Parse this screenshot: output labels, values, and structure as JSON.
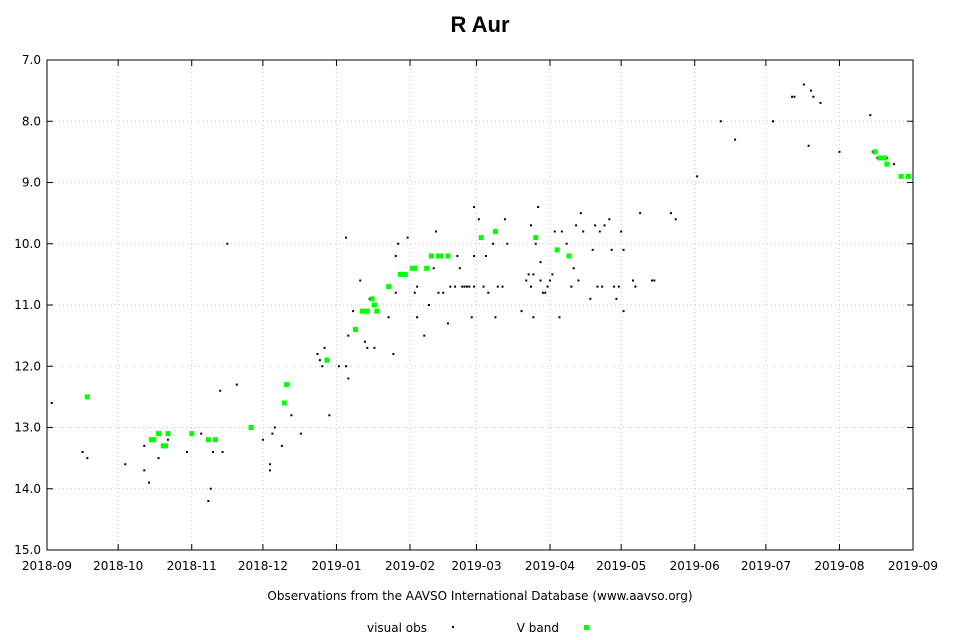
{
  "chart_data": {
    "type": "scatter",
    "title": "R Aur",
    "credit": "Observations from the AAVSO International Database (www.aavso.org)",
    "x_ticks": [
      "2018-09",
      "2018-10",
      "2018-11",
      "2018-12",
      "2019-01",
      "2019-02",
      "2019-03",
      "2019-04",
      "2019-05",
      "2019-06",
      "2019-07",
      "2019-08",
      "2019-09"
    ],
    "y_ticks": [
      "7.0",
      "8.0",
      "9.0",
      "10.0",
      "11.0",
      "12.0",
      "13.0",
      "14.0",
      "15.0"
    ],
    "xlim": [
      "2018-09-01",
      "2019-09-01"
    ],
    "ylim": [
      15.0,
      7.0
    ],
    "y_inverted": true,
    "grid": true,
    "legend_position": "bottom-center",
    "series": [
      {
        "name": "visual obs",
        "color": "#000000",
        "marker": "small-dot",
        "points": [
          [
            "2018-09-03",
            12.6
          ],
          [
            "2018-09-16",
            13.4
          ],
          [
            "2018-09-18",
            13.5
          ],
          [
            "2018-10-04",
            13.6
          ],
          [
            "2018-10-12",
            13.3
          ],
          [
            "2018-10-12",
            13.7
          ],
          [
            "2018-10-14",
            13.9
          ],
          [
            "2018-10-18",
            13.5
          ],
          [
            "2018-10-20",
            13.3
          ],
          [
            "2018-10-22",
            13.2
          ],
          [
            "2018-10-30",
            13.4
          ],
          [
            "2018-11-05",
            13.1
          ],
          [
            "2018-11-08",
            14.2
          ],
          [
            "2018-11-09",
            14.0
          ],
          [
            "2018-11-10",
            13.4
          ],
          [
            "2018-11-13",
            12.4
          ],
          [
            "2018-11-14",
            13.4
          ],
          [
            "2018-11-16",
            10.0
          ],
          [
            "2018-11-20",
            12.3
          ],
          [
            "2018-12-01",
            13.2
          ],
          [
            "2018-12-04",
            13.6
          ],
          [
            "2018-12-04",
            13.7
          ],
          [
            "2018-12-05",
            13.1
          ],
          [
            "2018-12-06",
            13.0
          ],
          [
            "2018-12-09",
            13.3
          ],
          [
            "2018-12-11",
            12.3
          ],
          [
            "2018-12-13",
            12.8
          ],
          [
            "2018-12-17",
            13.1
          ],
          [
            "2018-12-24",
            11.8
          ],
          [
            "2018-12-25",
            11.9
          ],
          [
            "2018-12-26",
            12.0
          ],
          [
            "2018-12-27",
            11.7
          ],
          [
            "2018-12-29",
            12.8
          ],
          [
            "2019-01-02",
            12.0
          ],
          [
            "2019-01-05",
            12.0
          ],
          [
            "2019-01-05",
            9.9
          ],
          [
            "2019-01-06",
            12.2
          ],
          [
            "2019-01-06",
            11.5
          ],
          [
            "2019-01-08",
            11.1
          ],
          [
            "2019-01-11",
            10.6
          ],
          [
            "2019-01-13",
            11.6
          ],
          [
            "2019-01-14",
            11.7
          ],
          [
            "2019-01-15",
            10.9
          ],
          [
            "2019-01-17",
            11.7
          ],
          [
            "2019-01-23",
            11.2
          ],
          [
            "2019-01-25",
            11.8
          ],
          [
            "2019-01-26",
            10.8
          ],
          [
            "2019-01-26",
            10.2
          ],
          [
            "2019-01-27",
            10.0
          ],
          [
            "2019-01-31",
            9.9
          ],
          [
            "2019-02-03",
            10.8
          ],
          [
            "2019-02-04",
            10.7
          ],
          [
            "2019-02-04",
            11.2
          ],
          [
            "2019-02-07",
            11.5
          ],
          [
            "2019-02-09",
            11.0
          ],
          [
            "2019-02-11",
            10.4
          ],
          [
            "2019-02-12",
            9.8
          ],
          [
            "2019-02-13",
            10.8
          ],
          [
            "2019-02-15",
            10.8
          ],
          [
            "2019-02-17",
            11.3
          ],
          [
            "2019-02-18",
            10.7
          ],
          [
            "2019-02-20",
            10.7
          ],
          [
            "2019-02-21",
            10.2
          ],
          [
            "2019-02-22",
            10.4
          ],
          [
            "2019-02-23",
            10.7
          ],
          [
            "2019-02-24",
            10.7
          ],
          [
            "2019-02-25",
            10.7
          ],
          [
            "2019-02-26",
            10.7
          ],
          [
            "2019-02-27",
            11.2
          ],
          [
            "2019-02-28",
            9.4
          ],
          [
            "2019-02-28",
            10.7
          ],
          [
            "2019-02-28",
            10.2
          ],
          [
            "2019-03-02",
            9.6
          ],
          [
            "2019-03-04",
            10.7
          ],
          [
            "2019-03-05",
            10.2
          ],
          [
            "2019-03-06",
            10.8
          ],
          [
            "2019-03-08",
            10.0
          ],
          [
            "2019-03-09",
            11.2
          ],
          [
            "2019-03-10",
            10.7
          ],
          [
            "2019-03-12",
            10.7
          ],
          [
            "2019-03-13",
            9.6
          ],
          [
            "2019-03-14",
            10.0
          ],
          [
            "2019-03-20",
            11.1
          ],
          [
            "2019-03-22",
            10.6
          ],
          [
            "2019-03-23",
            10.5
          ],
          [
            "2019-03-24",
            10.7
          ],
          [
            "2019-03-24",
            9.7
          ],
          [
            "2019-03-25",
            11.2
          ],
          [
            "2019-03-25",
            10.5
          ],
          [
            "2019-03-26",
            10.0
          ],
          [
            "2019-03-27",
            9.4
          ],
          [
            "2019-03-28",
            10.3
          ],
          [
            "2019-03-28",
            10.6
          ],
          [
            "2019-03-29",
            10.8
          ],
          [
            "2019-03-30",
            10.8
          ],
          [
            "2019-03-31",
            10.7
          ],
          [
            "2019-04-01",
            10.6
          ],
          [
            "2019-04-02",
            10.5
          ],
          [
            "2019-04-03",
            9.8
          ],
          [
            "2019-04-05",
            11.2
          ],
          [
            "2019-04-06",
            9.8
          ],
          [
            "2019-04-08",
            10.0
          ],
          [
            "2019-04-10",
            10.7
          ],
          [
            "2019-04-11",
            10.4
          ],
          [
            "2019-04-12",
            9.7
          ],
          [
            "2019-04-13",
            10.6
          ],
          [
            "2019-04-14",
            9.5
          ],
          [
            "2019-04-15",
            9.8
          ],
          [
            "2019-04-18",
            10.9
          ],
          [
            "2019-04-19",
            10.1
          ],
          [
            "2019-04-20",
            9.7
          ],
          [
            "2019-04-21",
            10.7
          ],
          [
            "2019-04-22",
            9.8
          ],
          [
            "2019-04-23",
            10.7
          ],
          [
            "2019-04-24",
            9.7
          ],
          [
            "2019-04-26",
            9.6
          ],
          [
            "2019-04-27",
            10.1
          ],
          [
            "2019-04-28",
            10.7
          ],
          [
            "2019-04-29",
            10.9
          ],
          [
            "2019-04-30",
            10.7
          ],
          [
            "2019-05-01",
            9.8
          ],
          [
            "2019-05-02",
            10.1
          ],
          [
            "2019-05-02",
            11.1
          ],
          [
            "2019-05-06",
            10.6
          ],
          [
            "2019-05-07",
            10.7
          ],
          [
            "2019-05-09",
            9.5
          ],
          [
            "2019-05-14",
            10.6
          ],
          [
            "2019-05-15",
            10.6
          ],
          [
            "2019-05-22",
            9.5
          ],
          [
            "2019-05-24",
            9.6
          ],
          [
            "2019-06-02",
            8.9
          ],
          [
            "2019-06-12",
            8.0
          ],
          [
            "2019-06-18",
            8.3
          ],
          [
            "2019-07-04",
            8.0
          ],
          [
            "2019-07-12",
            7.6
          ],
          [
            "2019-07-13",
            7.6
          ],
          [
            "2019-07-17",
            7.4
          ],
          [
            "2019-07-19",
            8.4
          ],
          [
            "2019-07-20",
            7.5
          ],
          [
            "2019-07-21",
            7.6
          ],
          [
            "2019-07-24",
            7.7
          ],
          [
            "2019-08-01",
            8.5
          ],
          [
            "2019-08-14",
            7.9
          ],
          [
            "2019-08-15",
            8.5
          ],
          [
            "2019-08-17",
            8.6
          ],
          [
            "2019-08-18",
            8.6
          ],
          [
            "2019-08-19",
            8.6
          ],
          [
            "2019-08-20",
            8.6
          ],
          [
            "2019-08-21",
            8.6
          ],
          [
            "2019-08-24",
            8.7
          ]
        ]
      },
      {
        "name": "V band",
        "color": "#00ff00",
        "marker": "square",
        "points": [
          [
            "2018-09-18",
            12.5
          ],
          [
            "2018-10-15",
            13.2
          ],
          [
            "2018-10-16",
            13.2
          ],
          [
            "2018-10-18",
            13.1
          ],
          [
            "2018-10-20",
            13.3
          ],
          [
            "2018-10-21",
            13.3
          ],
          [
            "2018-10-22",
            13.1
          ],
          [
            "2018-11-01",
            13.1
          ],
          [
            "2018-11-08",
            13.2
          ],
          [
            "2018-11-11",
            13.2
          ],
          [
            "2018-11-26",
            13.0
          ],
          [
            "2018-12-10",
            12.6
          ],
          [
            "2018-12-11",
            12.3
          ],
          [
            "2018-12-28",
            11.9
          ],
          [
            "2019-01-09",
            11.4
          ],
          [
            "2019-01-12",
            11.1
          ],
          [
            "2019-01-14",
            11.1
          ],
          [
            "2019-01-16",
            10.9
          ],
          [
            "2019-01-17",
            11.0
          ],
          [
            "2019-01-18",
            11.1
          ],
          [
            "2019-01-23",
            10.7
          ],
          [
            "2019-01-28",
            10.5
          ],
          [
            "2019-01-29",
            10.5
          ],
          [
            "2019-01-30",
            10.5
          ],
          [
            "2019-02-02",
            10.4
          ],
          [
            "2019-02-03",
            10.4
          ],
          [
            "2019-02-08",
            10.4
          ],
          [
            "2019-02-10",
            10.2
          ],
          [
            "2019-02-13",
            10.2
          ],
          [
            "2019-02-14",
            10.2
          ],
          [
            "2019-02-17",
            10.2
          ],
          [
            "2019-03-03",
            9.9
          ],
          [
            "2019-03-09",
            9.8
          ],
          [
            "2019-03-26",
            9.9
          ],
          [
            "2019-04-04",
            10.1
          ],
          [
            "2019-04-09",
            10.2
          ],
          [
            "2019-08-16",
            8.5
          ],
          [
            "2019-08-18",
            8.6
          ],
          [
            "2019-08-20",
            8.6
          ],
          [
            "2019-08-21",
            8.7
          ],
          [
            "2019-08-27",
            8.9
          ],
          [
            "2019-08-30",
            8.9
          ]
        ]
      }
    ]
  }
}
